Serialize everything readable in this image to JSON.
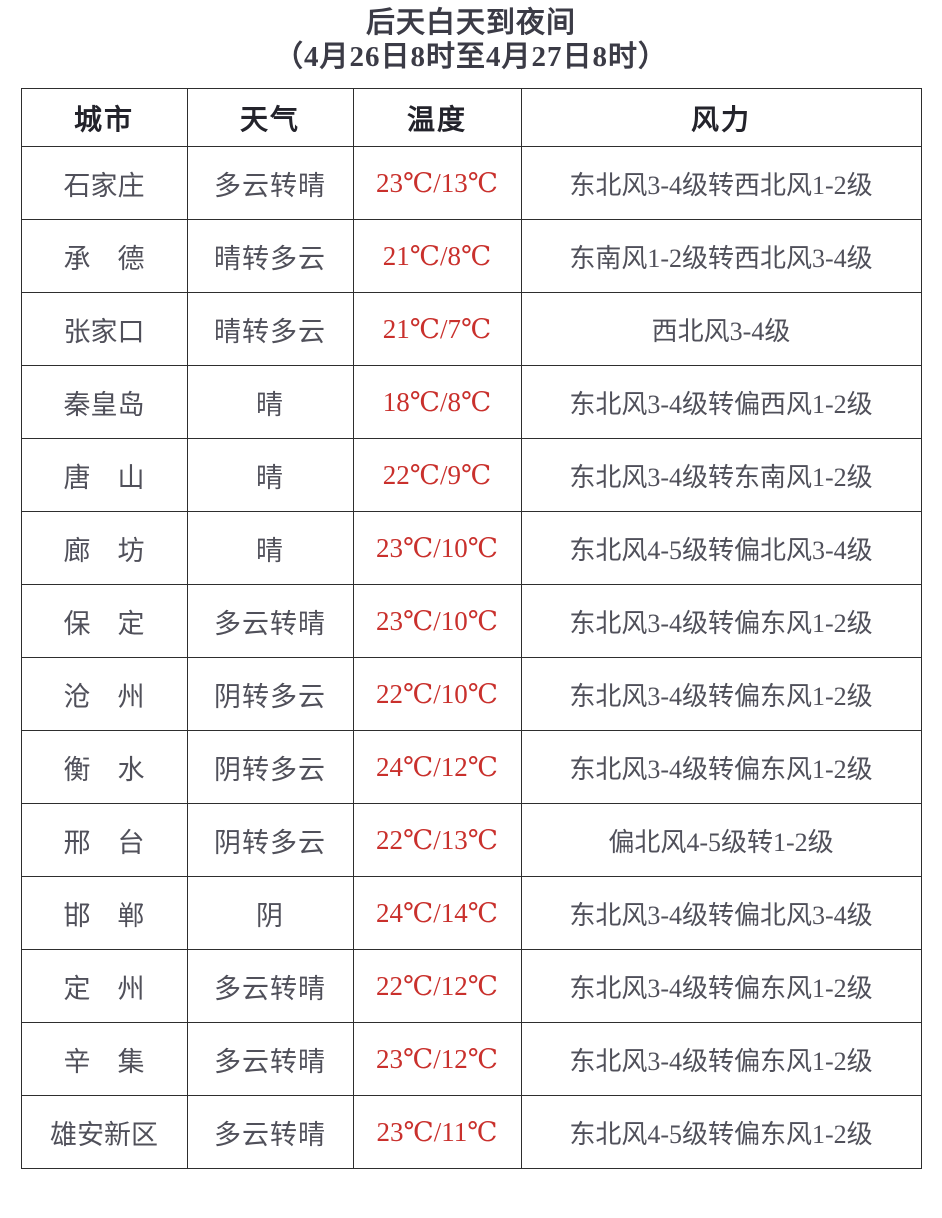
{
  "title": "后天白天到夜间",
  "subtitle": "（4月26日8时至4月27日8时）",
  "colors": {
    "temperature_red": "#c9302c",
    "body_text": "#50505a",
    "header_text": "#23232b",
    "border": "#2e2e2e"
  },
  "table": {
    "columns": [
      "城市",
      "天气",
      "温度",
      "风力"
    ],
    "rows": [
      {
        "city": "石家庄",
        "weather": "多云转晴",
        "temperature": "23℃/13℃",
        "wind": "东北风3-4级转西北风1-2级"
      },
      {
        "city": "承　德",
        "weather": "晴转多云",
        "temperature": "21℃/8℃",
        "wind": "东南风1-2级转西北风3-4级"
      },
      {
        "city": "张家口",
        "weather": "晴转多云",
        "temperature": "21℃/7℃",
        "wind": "西北风3-4级"
      },
      {
        "city": "秦皇岛",
        "weather": "晴",
        "temperature": "18℃/8℃",
        "wind": "东北风3-4级转偏西风1-2级"
      },
      {
        "city": "唐　山",
        "weather": "晴",
        "temperature": "22℃/9℃",
        "wind": "东北风3-4级转东南风1-2级"
      },
      {
        "city": "廊　坊",
        "weather": "晴",
        "temperature": "23℃/10℃",
        "wind": "东北风4-5级转偏北风3-4级"
      },
      {
        "city": "保　定",
        "weather": "多云转晴",
        "temperature": "23℃/10℃",
        "wind": "东北风3-4级转偏东风1-2级"
      },
      {
        "city": "沧　州",
        "weather": "阴转多云",
        "temperature": "22℃/10℃",
        "wind": "东北风3-4级转偏东风1-2级"
      },
      {
        "city": "衡　水",
        "weather": "阴转多云",
        "temperature": "24℃/12℃",
        "wind": "东北风3-4级转偏东风1-2级"
      },
      {
        "city": "邢　台",
        "weather": "阴转多云",
        "temperature": "22℃/13℃",
        "wind": "偏北风4-5级转1-2级"
      },
      {
        "city": "邯　郸",
        "weather": "阴",
        "temperature": "24℃/14℃",
        "wind": "东北风3-4级转偏北风3-4级"
      },
      {
        "city": "定　州",
        "weather": "多云转晴",
        "temperature": "22℃/12℃",
        "wind": "东北风3-4级转偏东风1-2级"
      },
      {
        "city": "辛　集",
        "weather": "多云转晴",
        "temperature": "23℃/12℃",
        "wind": "东北风3-4级转偏东风1-2级"
      },
      {
        "city": "雄安新区",
        "weather": "多云转晴",
        "temperature": "23℃/11℃",
        "wind": "东北风4-5级转偏东风1-2级"
      }
    ]
  }
}
